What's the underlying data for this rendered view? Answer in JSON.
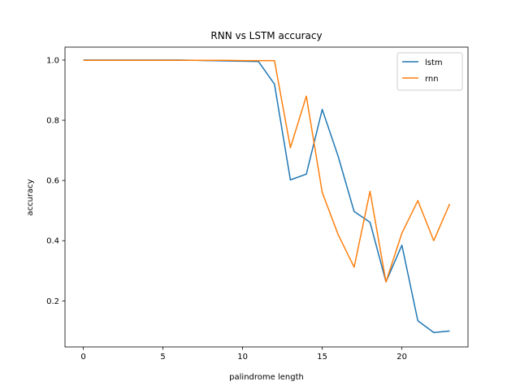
{
  "chart_data": {
    "type": "line",
    "title": "RNN vs LSTM accuracy",
    "xlabel": "palindrome length",
    "ylabel": "accuracy",
    "xlim": [
      -1.15,
      24.15
    ],
    "ylim": [
      0.047,
      1.043
    ],
    "xticks": [
      0,
      5,
      10,
      15,
      20
    ],
    "yticks": [
      0.2,
      0.4,
      0.6,
      0.8,
      1.0
    ],
    "xtick_labels": [
      "0",
      "5",
      "10",
      "15",
      "20"
    ],
    "ytick_labels": [
      "0.2",
      "0.4",
      "0.6",
      "0.8",
      "1.0"
    ],
    "x": [
      0,
      1,
      2,
      3,
      4,
      5,
      6,
      7,
      8,
      9,
      10,
      11,
      12,
      13,
      14,
      15,
      16,
      17,
      18,
      19,
      20,
      21,
      22,
      23
    ],
    "series": [
      {
        "name": "lstm",
        "color": "#1f77b4",
        "values": [
          1.0,
          1.0,
          1.0,
          1.0,
          1.0,
          1.0,
          1.0,
          0.999,
          0.998,
          0.997,
          0.996,
          0.995,
          0.92,
          0.602,
          0.621,
          0.836,
          0.68,
          0.497,
          0.461,
          0.263,
          0.385,
          0.134,
          0.095,
          0.1
        ]
      },
      {
        "name": "rnn",
        "color": "#ff7f0e",
        "values": [
          0.999,
          0.999,
          0.999,
          0.999,
          0.999,
          0.999,
          0.999,
          0.999,
          0.999,
          0.999,
          0.998,
          0.998,
          0.998,
          0.709,
          0.88,
          0.56,
          0.42,
          0.312,
          0.564,
          0.263,
          0.425,
          0.533,
          0.4,
          0.522
        ]
      }
    ],
    "grid": false,
    "legend_position": "top-right"
  }
}
